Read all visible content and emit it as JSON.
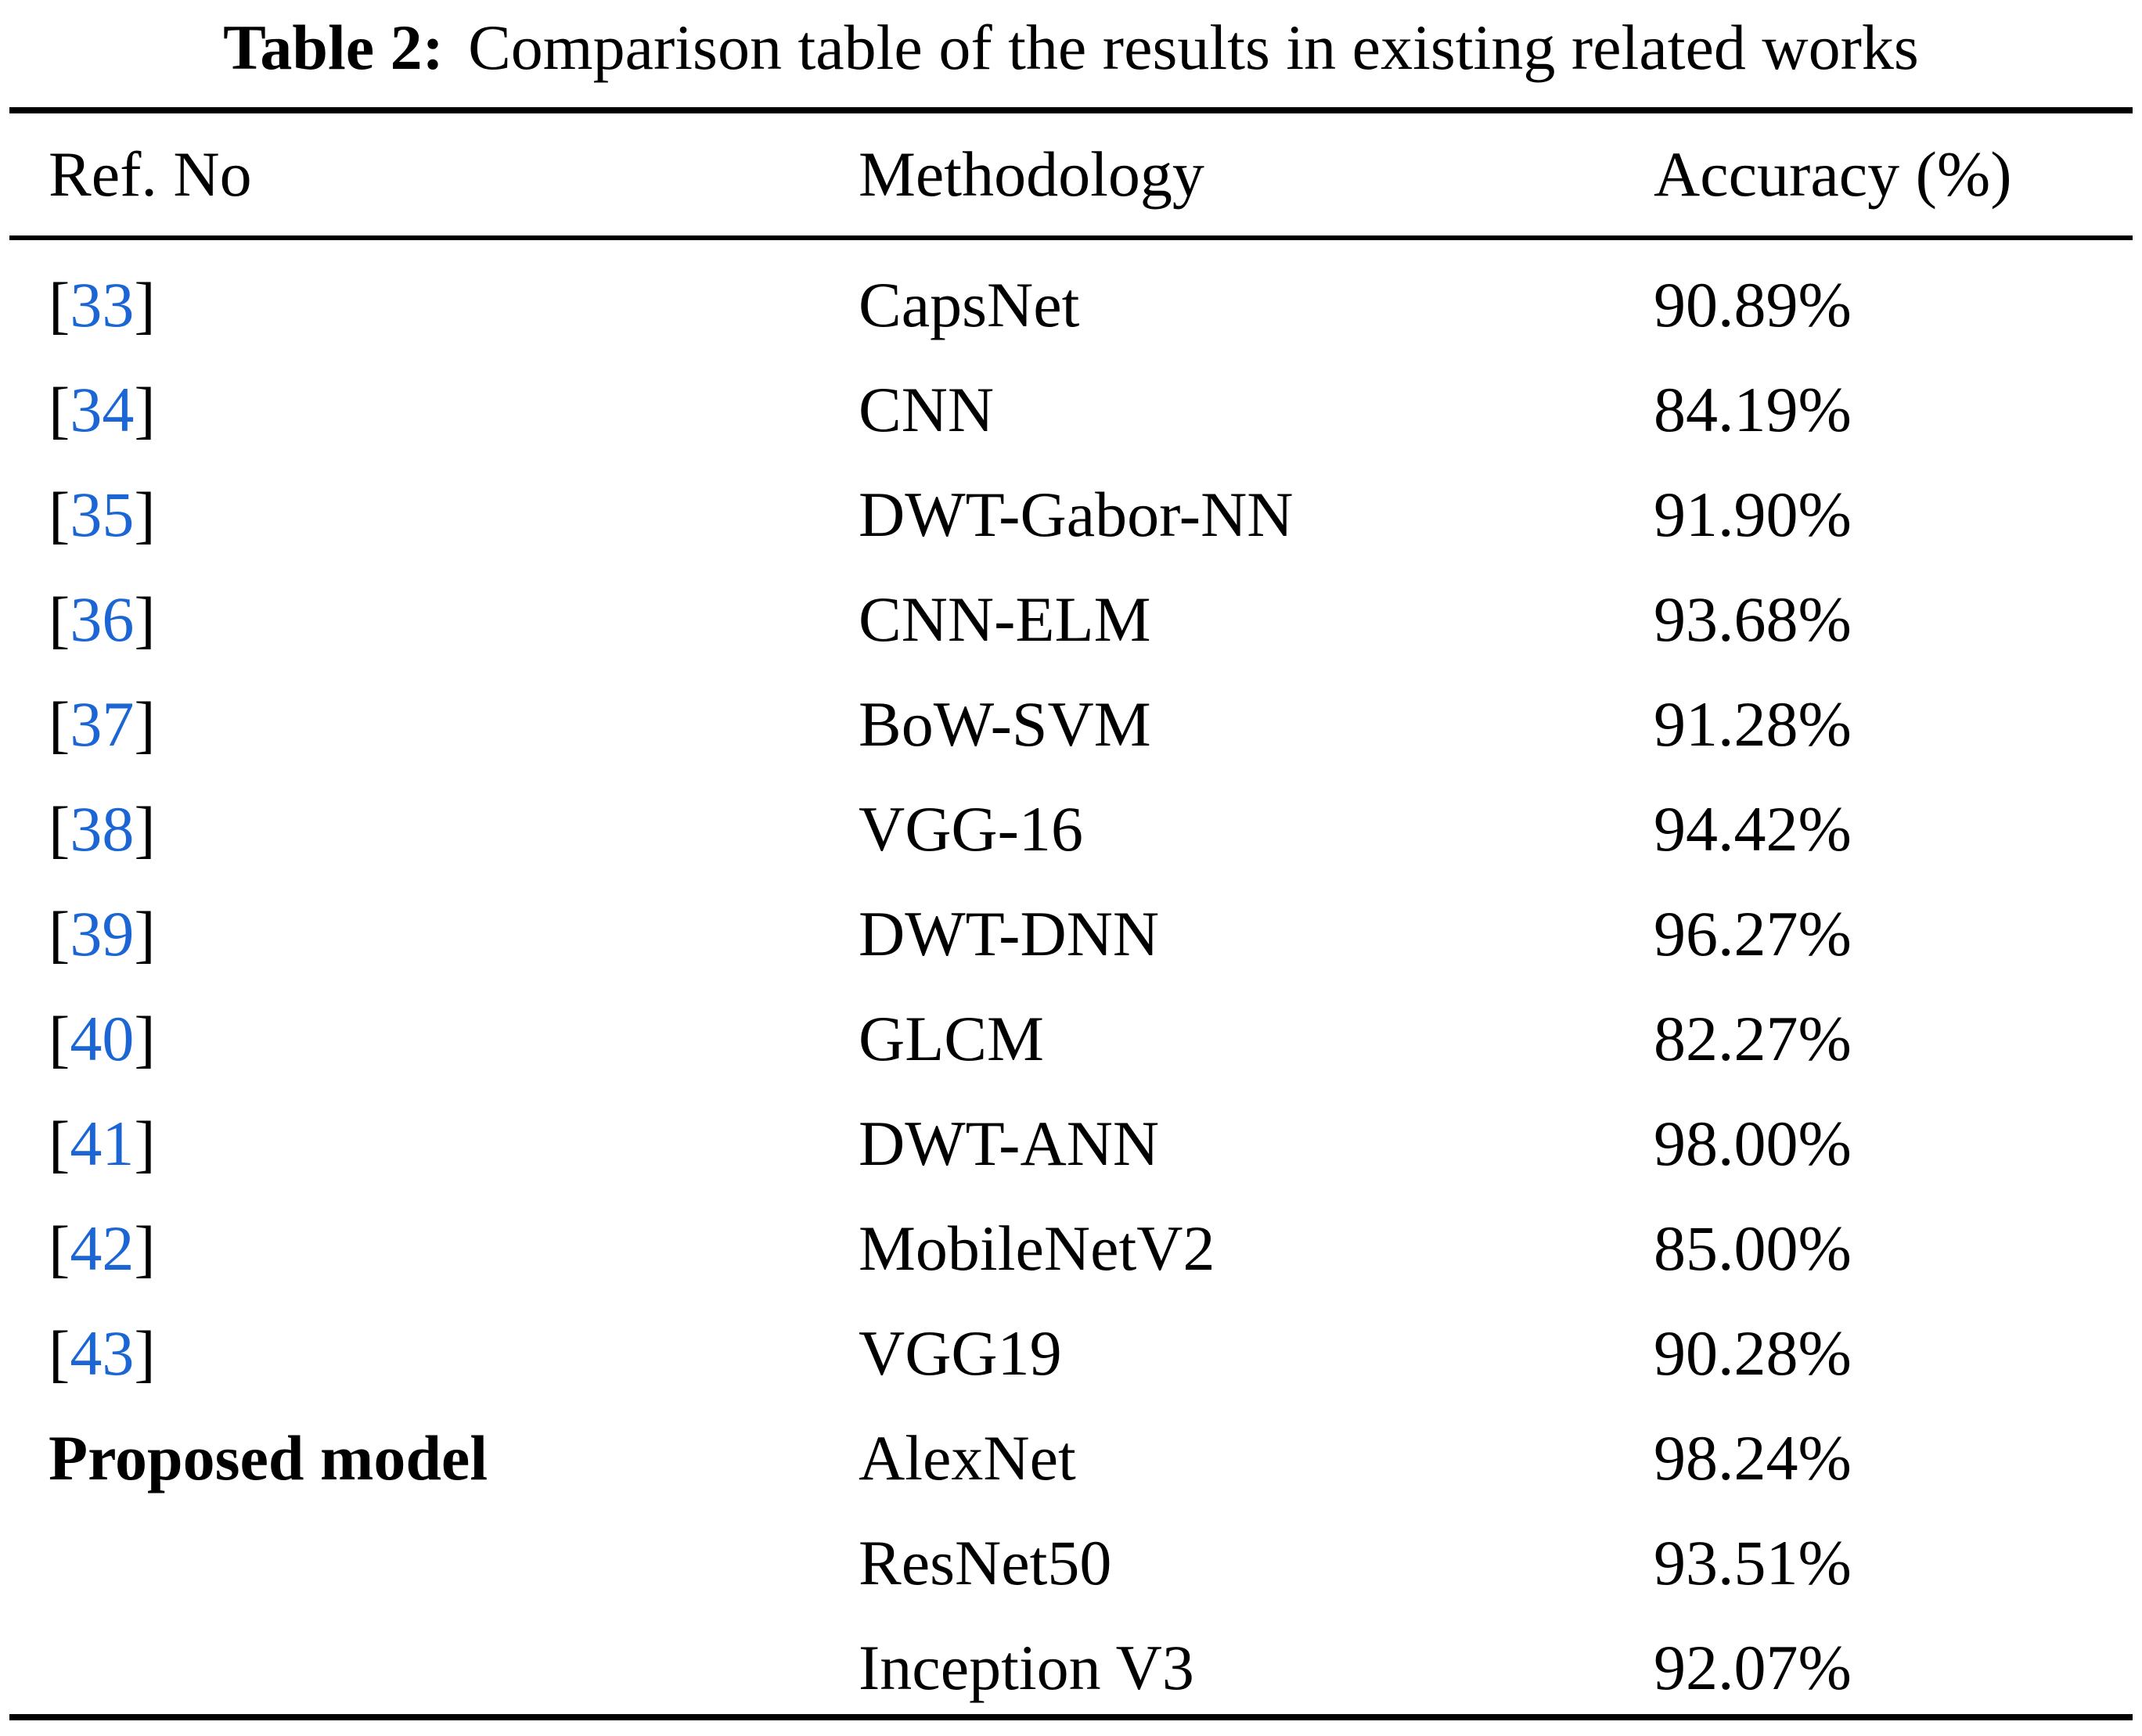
{
  "table": {
    "title_label": "Table 2:",
    "title_text": "Comparison table of the results in existing related works",
    "columns": [
      "Ref. No",
      "Methodology",
      "Accuracy (%)"
    ],
    "link_color": "#1b66d4",
    "text_color": "#000000",
    "bracket_open": "[",
    "bracket_close": "]",
    "rows": [
      {
        "ref_number": "33",
        "ref_label": "",
        "methodology": "CapsNet",
        "accuracy": "90.89%"
      },
      {
        "ref_number": "34",
        "ref_label": "",
        "methodology": "CNN",
        "accuracy": "84.19%"
      },
      {
        "ref_number": "35",
        "ref_label": "",
        "methodology": "DWT-Gabor-NN",
        "accuracy": "91.90%"
      },
      {
        "ref_number": "36",
        "ref_label": "",
        "methodology": "CNN-ELM",
        "accuracy": "93.68%"
      },
      {
        "ref_number": "37",
        "ref_label": "",
        "methodology": "BoW-SVM",
        "accuracy": "91.28%"
      },
      {
        "ref_number": "38",
        "ref_label": "",
        "methodology": "VGG-16",
        "accuracy": "94.42%"
      },
      {
        "ref_number": "39",
        "ref_label": "",
        "methodology": "DWT-DNN",
        "accuracy": "96.27%"
      },
      {
        "ref_number": "40",
        "ref_label": "",
        "methodology": "GLCM",
        "accuracy": "82.27%"
      },
      {
        "ref_number": "41",
        "ref_label": "",
        "methodology": "DWT-ANN",
        "accuracy": "98.00%"
      },
      {
        "ref_number": "42",
        "ref_label": "",
        "methodology": "MobileNetV2",
        "accuracy": "85.00%"
      },
      {
        "ref_number": "43",
        "ref_label": "",
        "methodology": "VGG19",
        "accuracy": "90.28%"
      },
      {
        "ref_number": "",
        "ref_label": "Proposed model",
        "methodology": "AlexNet",
        "accuracy": "98.24%"
      },
      {
        "ref_number": "",
        "ref_label": "",
        "methodology": "ResNet50",
        "accuracy": "93.51%"
      },
      {
        "ref_number": "",
        "ref_label": "",
        "methodology": "Inception V3",
        "accuracy": "92.07%"
      }
    ]
  }
}
